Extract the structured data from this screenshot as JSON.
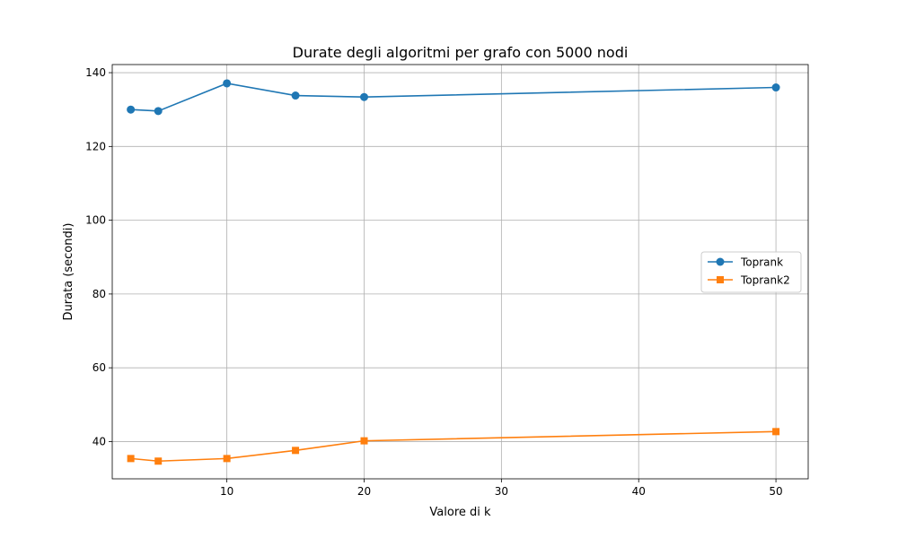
{
  "chart_data": {
    "type": "line",
    "title": "Durate degli algoritmi per grafo con 5000 nodi",
    "xlabel": "Valore di k",
    "ylabel": "Durata (secondi)",
    "xlim": [
      1.65,
      52.35
    ],
    "ylim": [
      29.9,
      142.2
    ],
    "xticks": [
      10,
      20,
      30,
      40,
      50
    ],
    "yticks": [
      40,
      60,
      80,
      100,
      120,
      140
    ],
    "grid": true,
    "legend_position": "center-right",
    "series": [
      {
        "name": "Toprank",
        "color": "#1f77b4",
        "marker": "circle",
        "x": [
          3,
          5,
          10,
          15,
          20,
          50
        ],
        "y": [
          130.0,
          129.6,
          137.1,
          133.8,
          133.4,
          136.0
        ]
      },
      {
        "name": "Toprank2",
        "color": "#ff7f0e",
        "marker": "square",
        "x": [
          3,
          5,
          10,
          15,
          20,
          50
        ],
        "y": [
          35.4,
          34.7,
          35.4,
          37.6,
          40.2,
          42.7
        ]
      }
    ]
  }
}
